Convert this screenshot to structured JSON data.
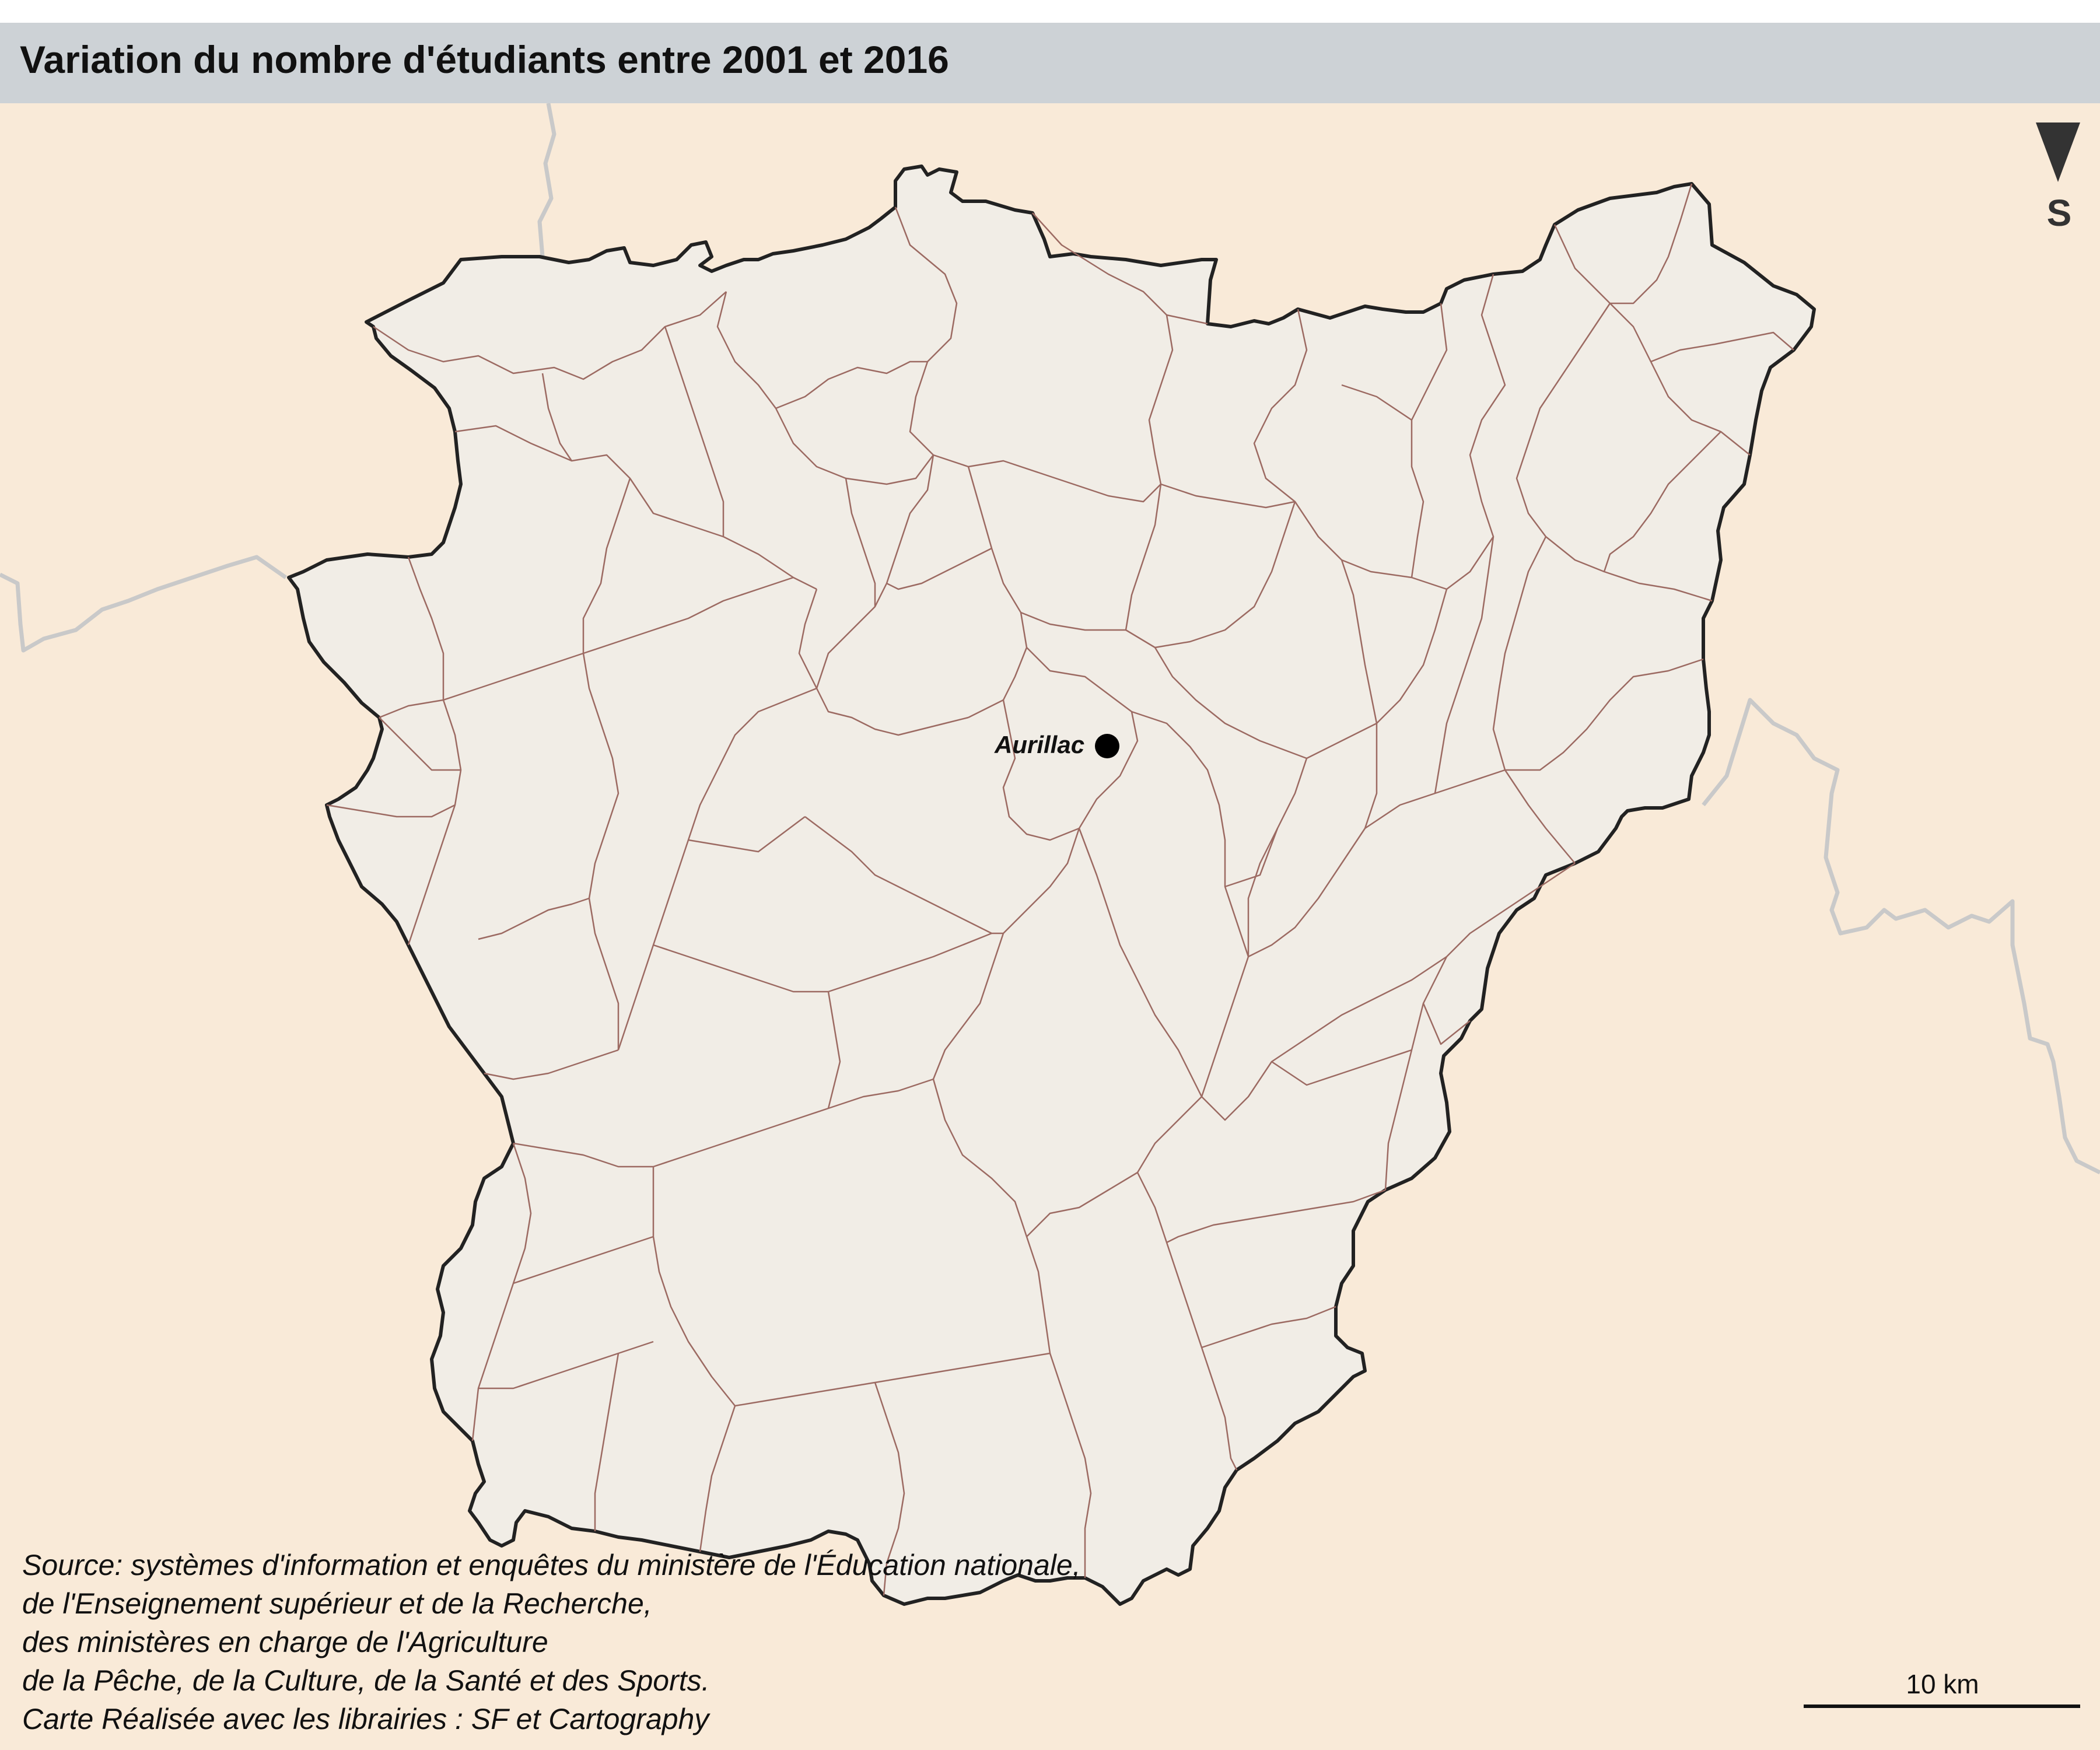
{
  "map": {
    "title": "Variation du nombre d'étudiants entre 2001 et 2016",
    "north_label": "S",
    "city_label": "Aurillac",
    "scale_label": "10 km",
    "source_lines": [
      "Source: systèmes d'information et enquêtes du ministère de l'Éducation nationale,",
      "de l'Enseignement supérieur et de la Recherche,",
      "des ministères en charge de l'Agriculture",
      "de la Pêche, de la Culture, de la Santé et des Sports.",
      "Carte Réalisée avec les librairies : SF et Cartography"
    ],
    "colors": {
      "background": "#f9ead8",
      "title_bar": "#cdd2d6",
      "department_fill": "#f1ede6",
      "department_border": "#222222",
      "commune_border": "#9c6a62",
      "neighbor_border": "#c9c9c9"
    }
  }
}
